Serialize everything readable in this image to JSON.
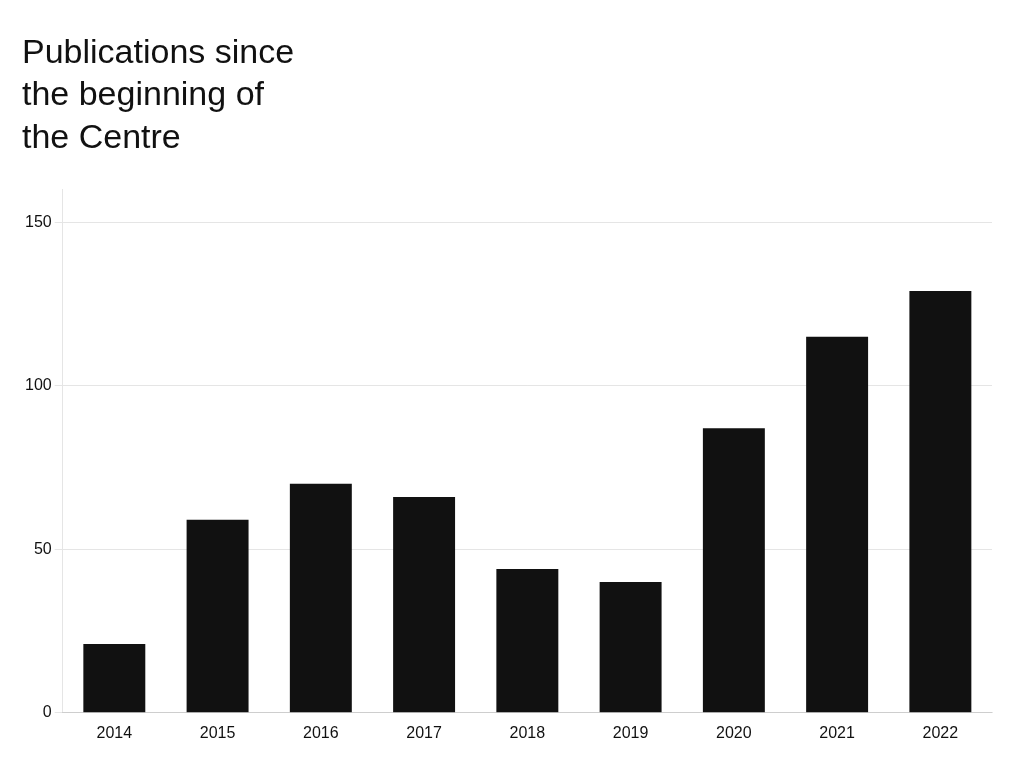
{
  "chart_data": {
    "type": "bar",
    "title": [
      "Publications since",
      "the beginning of",
      "the Centre"
    ],
    "categories": [
      "2014",
      "2015",
      "2016",
      "2017",
      "2018",
      "2019",
      "2020",
      "2021",
      "2022"
    ],
    "values": [
      21,
      59,
      70,
      66,
      44,
      40,
      87,
      115,
      129
    ],
    "color": "#111111",
    "ylim": [
      0,
      160
    ],
    "yticks": [
      0,
      50,
      100,
      150
    ],
    "grid": true
  }
}
